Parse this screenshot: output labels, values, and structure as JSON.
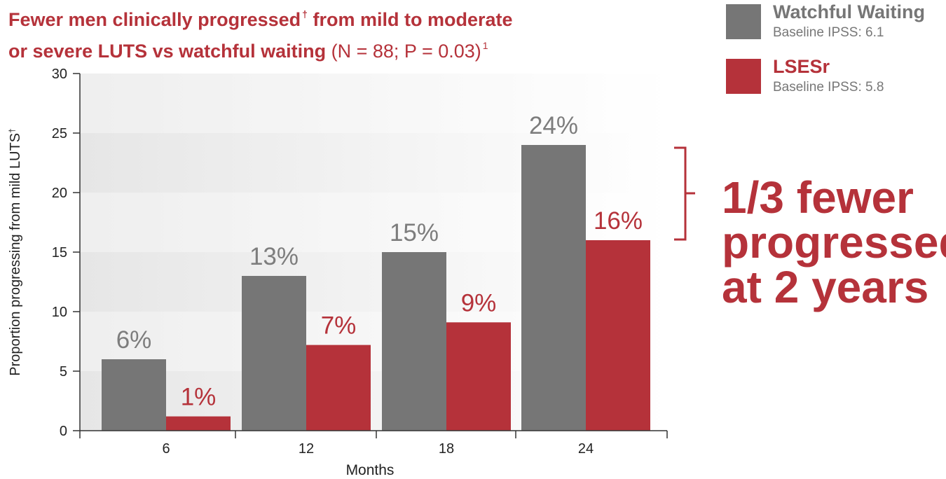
{
  "header": {
    "title_bold_1": "Fewer men clinically progressed",
    "title_dagger": "†",
    "title_bold_1b": " from mild to moderate",
    "title_bold_2": "or severe LUTS vs watchful waiting",
    "title_normal": " (N = 88; P = 0.03)",
    "title_ref": "1"
  },
  "legend": [
    {
      "name": "Watchful Waiting",
      "sub": "Baseline IPSS: 6.1",
      "color": "#767676"
    },
    {
      "name": "LSESr",
      "sub": "Baseline IPSS: 5.8",
      "color": "#b5323a"
    }
  ],
  "callout": {
    "line1": "1/3 fewer",
    "line2": "progressed",
    "line3": "at 2 years"
  },
  "colors": {
    "watchful": "#767676",
    "lsesr": "#b5323a",
    "axis": "#333333",
    "label_gray": "#7d7d7d",
    "label_red": "#b5323a"
  },
  "chart_data": {
    "type": "bar",
    "categories": [
      "6",
      "12",
      "18",
      "24"
    ],
    "series": [
      {
        "name": "Watchful Waiting",
        "values": [
          6,
          13,
          15,
          24
        ],
        "labels": [
          "6%",
          "13%",
          "15%",
          "24%"
        ],
        "color": "#767676"
      },
      {
        "name": "LSESr",
        "values": [
          1.2,
          7.2,
          9.1,
          16
        ],
        "labels": [
          "1%",
          "7%",
          "9%",
          "16%"
        ],
        "color": "#b5323a"
      }
    ],
    "xlabel": "Months",
    "ylabel": "Proportion progressing from mild LUTS",
    "ylabel_mark": "†",
    "ylim": [
      0,
      30
    ],
    "yticks": [
      0,
      5,
      10,
      15,
      20,
      25,
      30
    ],
    "grid": false,
    "legend_position": "top-right"
  }
}
